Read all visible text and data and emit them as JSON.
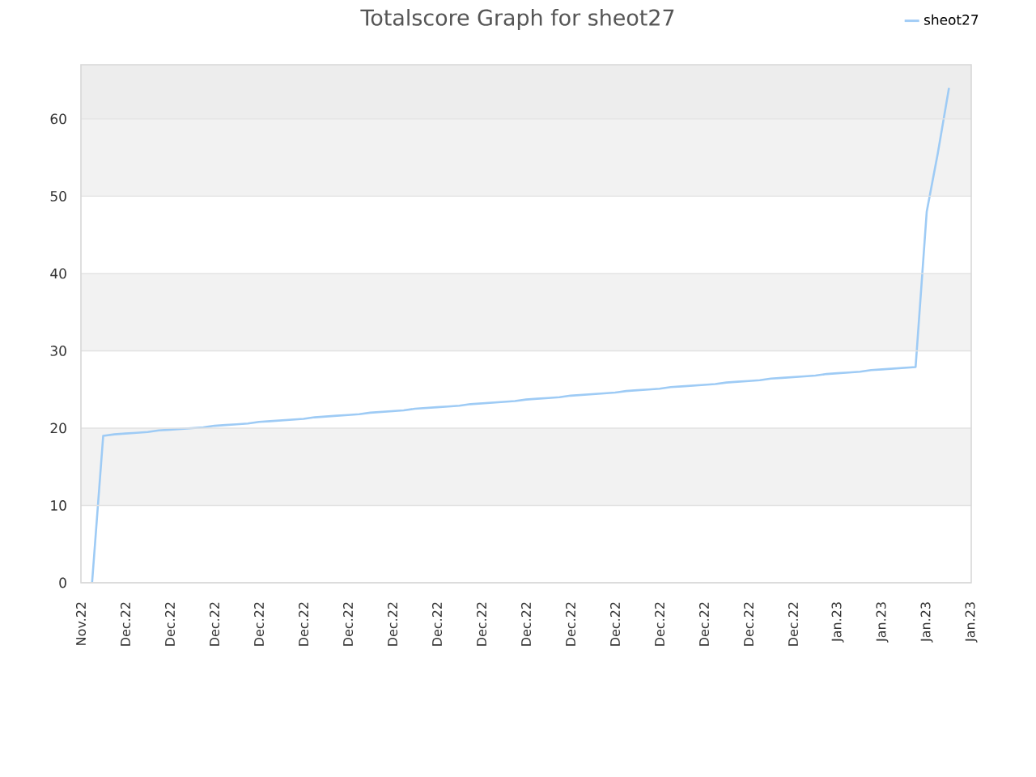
{
  "chart_data": {
    "type": "line",
    "title": "Totalscore Graph for sheot27",
    "categories": [
      "Nov.22",
      null,
      null,
      null,
      "Dec.22",
      null,
      null,
      null,
      "Dec.22",
      null,
      null,
      null,
      "Dec.22",
      null,
      null,
      null,
      "Dec.22",
      null,
      null,
      null,
      "Dec.22",
      null,
      null,
      null,
      "Dec.22",
      null,
      null,
      null,
      "Dec.22",
      null,
      null,
      null,
      "Dec.22",
      null,
      null,
      null,
      "Dec.22",
      null,
      null,
      null,
      "Dec.22",
      null,
      null,
      null,
      "Dec.22",
      null,
      null,
      null,
      "Dec.22",
      null,
      null,
      null,
      "Dec.22",
      null,
      null,
      null,
      "Dec.22",
      null,
      null,
      null,
      "Dec.22",
      null,
      null,
      null,
      "Dec.22",
      null,
      null,
      null,
      "Jan.23",
      null,
      null,
      null,
      "Jan.23",
      null,
      null,
      null,
      "Jan.23",
      null,
      null,
      null,
      "Jan.23"
    ],
    "series": [
      {
        "name": "sheot27",
        "color": "#9ecbf5",
        "values": [
          null,
          0,
          19.0,
          19.2,
          19.3,
          19.4,
          19.5,
          19.7,
          19.8,
          19.9,
          20.0,
          20.1,
          20.3,
          20.4,
          20.5,
          20.6,
          20.8,
          20.9,
          21.0,
          21.1,
          21.2,
          21.4,
          21.5,
          21.6,
          21.7,
          21.8,
          22.0,
          22.1,
          22.2,
          22.3,
          22.5,
          22.6,
          22.7,
          22.8,
          22.9,
          23.1,
          23.2,
          23.3,
          23.4,
          23.5,
          23.7,
          23.8,
          23.9,
          24.0,
          24.2,
          24.3,
          24.4,
          24.5,
          24.6,
          24.8,
          24.9,
          25.0,
          25.1,
          25.3,
          25.4,
          25.5,
          25.6,
          25.7,
          25.9,
          26.0,
          26.1,
          26.2,
          26.4,
          26.5,
          26.6,
          26.7,
          26.8,
          27.0,
          27.1,
          27.2,
          27.3,
          27.5,
          27.6,
          27.7,
          27.8,
          27.9,
          48.0,
          55.6,
          64,
          null,
          null
        ]
      }
    ],
    "ylim": [
      0,
      67
    ],
    "yticks": [
      0,
      10,
      20,
      30,
      40,
      50,
      60
    ],
    "grid": "y",
    "legend": "top right",
    "marker": "none",
    "line_style": "solid",
    "bands": [
      {
        "axis": "y",
        "from": 10,
        "to": 20,
        "color": "#f2f2f2"
      },
      {
        "axis": "y",
        "from": 30,
        "to": 40,
        "color": "#f2f2f2"
      },
      {
        "axis": "y",
        "from": 50,
        "to": 60,
        "color": "#f2f2f2"
      },
      {
        "axis": "y",
        "from": 60,
        "to": 67,
        "color": "#ededed"
      }
    ]
  }
}
